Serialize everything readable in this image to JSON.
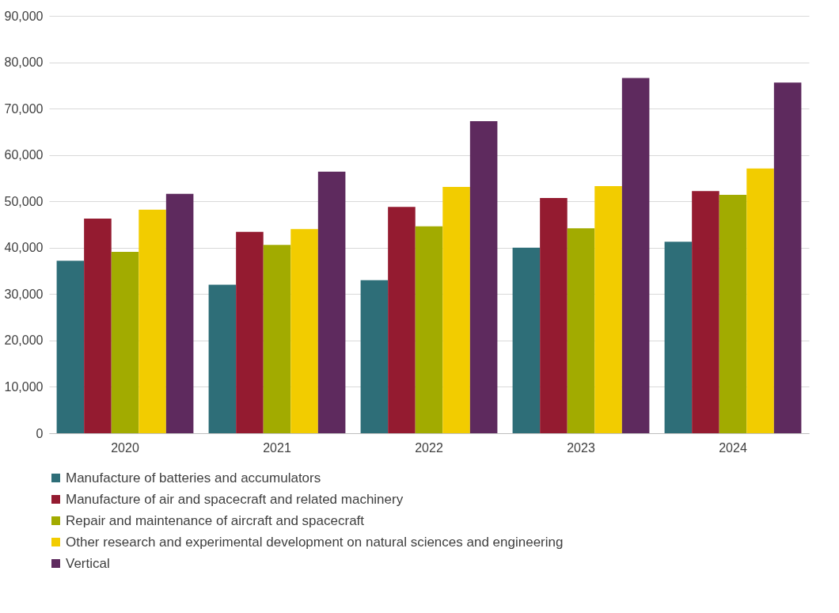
{
  "chart_data": {
    "type": "bar",
    "categories": [
      "2020",
      "2021",
      "2022",
      "2023",
      "2024"
    ],
    "series": [
      {
        "name": "Manufacture of batteries and accumulators",
        "color": "#2e6e78",
        "values": [
          37200,
          32000,
          33000,
          40000,
          41300
        ]
      },
      {
        "name": "Manufacture of air and spacecraft and related machinery",
        "color": "#941b30",
        "values": [
          46300,
          43400,
          48800,
          50700,
          52200
        ]
      },
      {
        "name": "Repair and maintenance of aircraft and spacecraft",
        "color": "#a2ab00",
        "values": [
          39100,
          40600,
          44600,
          44200,
          51400
        ]
      },
      {
        "name": "Other research and experimental development on natural sciences and engineering",
        "color": "#f2cc00",
        "values": [
          48200,
          44000,
          53100,
          53300,
          57100
        ]
      },
      {
        "name": "Vertical",
        "color": "#5e2a5e",
        "values": [
          51600,
          56400,
          67300,
          76600,
          75600
        ]
      }
    ],
    "ylim": [
      0,
      90000
    ],
    "yticks": [
      0,
      {
        "value": 10000,
        "label": "10,000"
      },
      {
        "value": 20000,
        "label": "20,000"
      },
      {
        "value": 30000,
        "label": "30,000"
      },
      {
        "value": 40000,
        "label": "40,000"
      },
      {
        "value": 50000,
        "label": "50,000"
      },
      {
        "value": 60000,
        "label": "60,000"
      },
      {
        "value": 70000,
        "label": "70,000"
      },
      {
        "value": 80000,
        "label": "80,000"
      },
      {
        "value": 90000,
        "label": "90,000"
      }
    ],
    "grid": "y",
    "legend": "bottom"
  }
}
